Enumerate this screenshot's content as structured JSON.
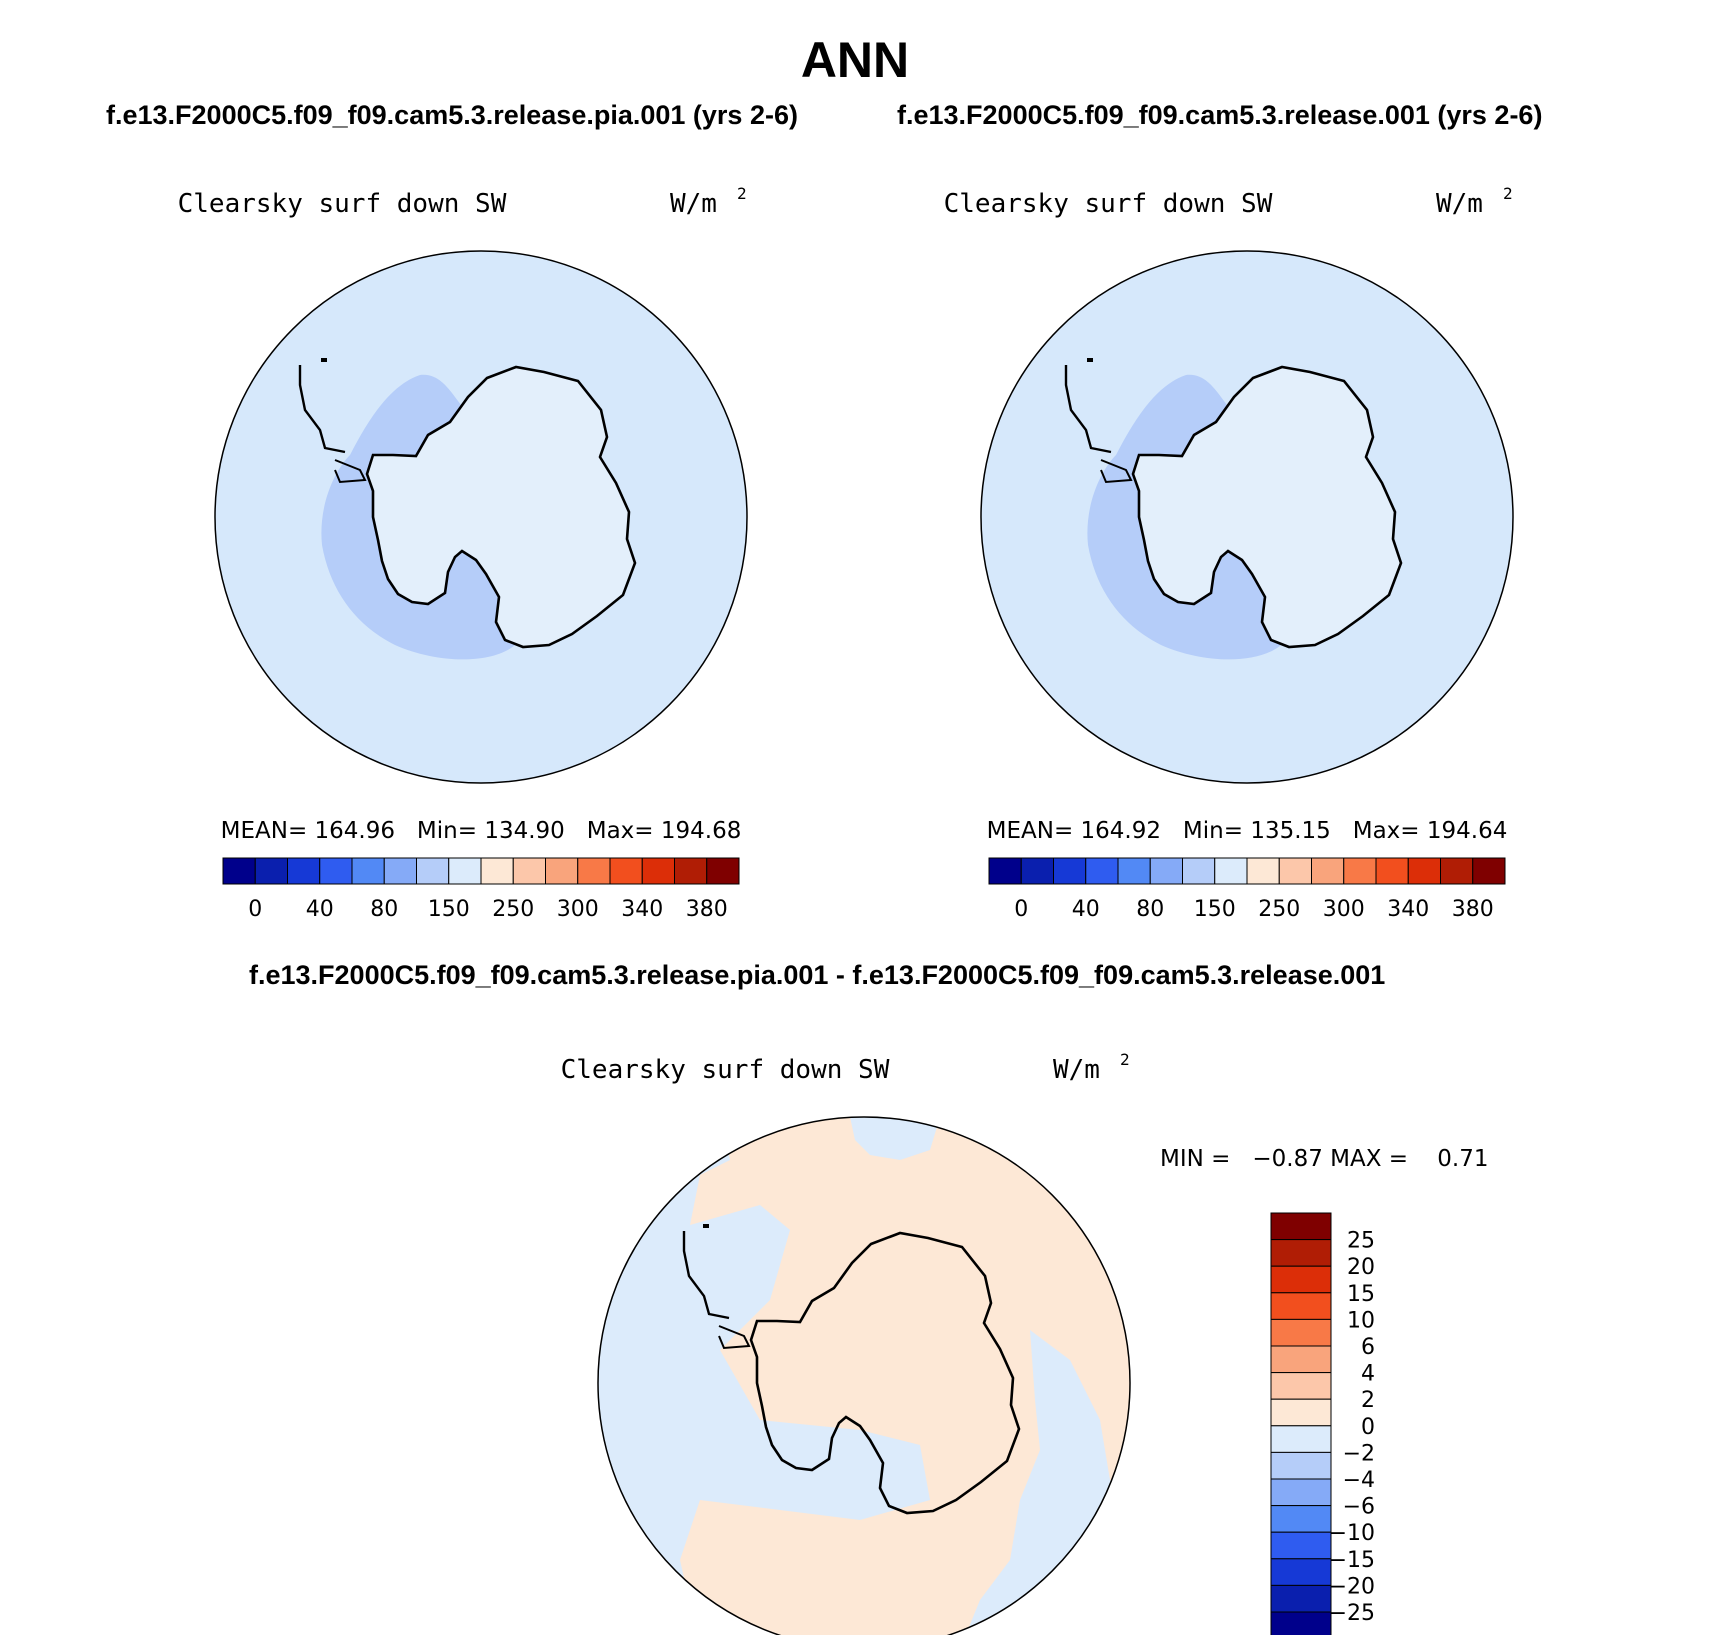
{
  "title": "ANN",
  "panels": [
    {
      "case_title": "f.e13.F2000C5.f09_f09.cam5.3.release.pia.001 (yrs 2-6)",
      "variable": "Clearsky surf down SW",
      "units": "W/m",
      "units_exp": "2",
      "stats": "MEAN= 164.96   Min= 134.90   Max= 194.68"
    },
    {
      "case_title": "f.e13.F2000C5.f09_f09.cam5.3.release.001 (yrs 2-6)",
      "variable": "Clearsky surf down SW",
      "units": "W/m",
      "units_exp": "2",
      "stats": "MEAN= 164.92   Min= 135.15   Max= 194.64"
    }
  ],
  "diff_panel": {
    "case_title": "f.e13.F2000C5.f09_f09.cam5.3.release.pia.001 - f.e13.F2000C5.f09_f09.cam5.3.release.001",
    "variable": "Clearsky surf down SW",
    "units": "W/m",
    "units_exp": "2",
    "minmax": "MIN =   −0.87 MAX =    0.71"
  },
  "colorbar_top": {
    "labels": [
      "0",
      "40",
      "80",
      "150",
      "250",
      "300",
      "340",
      "380"
    ],
    "colors": [
      "#00008b",
      "#0a1fae",
      "#1639d6",
      "#2f5cf0",
      "#5289f5",
      "#85aaf7",
      "#b5cdf9",
      "#dcebfb",
      "#fde8d6",
      "#fcc7aa",
      "#f9a47c",
      "#f87947",
      "#f24f1e",
      "#dc2e08",
      "#b01d05",
      "#7f0000"
    ]
  },
  "colorbar_diff": {
    "labels": [
      "25",
      "20",
      "15",
      "10",
      "6",
      "4",
      "2",
      "0",
      "−2",
      "−4",
      "−6",
      "−10",
      "−15",
      "−20",
      "−25"
    ],
    "colors": [
      "#7f0000",
      "#b01d05",
      "#dc2e08",
      "#f24f1e",
      "#f87947",
      "#f9a47c",
      "#fcc7aa",
      "#fde8d6",
      "#dcebfb",
      "#b5cdf9",
      "#85aaf7",
      "#5289f5",
      "#2f5cf0",
      "#1639d6",
      "#0a1fae",
      "#00008b"
    ]
  },
  "map_colors": {
    "ocean_light_blue": "#d6e8fb",
    "interior_blue": "#b5cdf9",
    "land_pale": "#e3effb",
    "diff_positive": "#fde8d6",
    "diff_negative": "#dcebfb"
  }
}
